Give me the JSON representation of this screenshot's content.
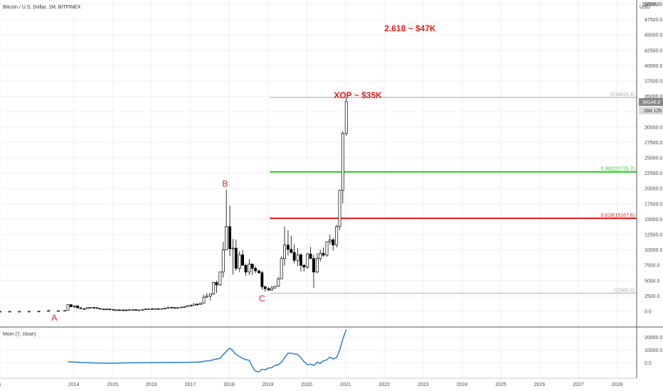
{
  "chart_data": [
    {
      "type": "candlestick",
      "title": "Bitcoin / U.S. Dollar, 1M, BITFINEX",
      "currency_label": "USD",
      "ylim": [
        -2000,
        52000
      ],
      "y_ticks": [
        0,
        2500,
        5000,
        7500,
        10000,
        12500,
        15000,
        17500,
        20000,
        22500,
        25000,
        27500,
        30000,
        32500,
        35000,
        37500,
        40000,
        42500,
        45000,
        47500,
        50000
      ],
      "y_tick_labels": [
        "0.0",
        "2500.0",
        "5000.0",
        "7500.0",
        "10000.0",
        "12500.0",
        "15000.0",
        "17500.0",
        "20000.0",
        "22500.0",
        "25000.0",
        "27500.0",
        "30000.0",
        "32500.0",
        "35000.0",
        "37500.0",
        "40000.0",
        "42500.0",
        "45000.0",
        "47500.0",
        "50000.0"
      ],
      "y_top_partial_label": "52500.0",
      "x_ticks": [
        "1",
        "2014",
        "2015",
        "2016",
        "2017",
        "2018",
        "2019",
        "2020",
        "2021",
        "2022",
        "2023",
        "2024",
        "2025",
        "2026",
        "2027",
        "2028"
      ],
      "xlim": [
        2012.0,
        2028.4
      ],
      "last_price_label": "34146.0",
      "countdown_label": "28d 12h",
      "grid": true,
      "candles": [
        {
          "t": 2012.0,
          "o": 5,
          "h": 7,
          "l": 4,
          "c": 6
        },
        {
          "t": 2012.25,
          "o": 5,
          "h": 7,
          "l": 4,
          "c": 5
        },
        {
          "t": 2012.5,
          "o": 6,
          "h": 12,
          "l": 6,
          "c": 10
        },
        {
          "t": 2012.75,
          "o": 11,
          "h": 13,
          "l": 10,
          "c": 13
        },
        {
          "t": 2013.0,
          "o": 13,
          "h": 30,
          "l": 13,
          "c": 30
        },
        {
          "t": 2013.25,
          "o": 100,
          "h": 260,
          "l": 60,
          "c": 120
        },
        {
          "t": 2013.5,
          "o": 95,
          "h": 120,
          "l": 70,
          "c": 105
        },
        {
          "t": 2013.67,
          "o": 130,
          "h": 160,
          "l": 110,
          "c": 150
        },
        {
          "t": 2013.75,
          "o": 200,
          "h": 1150,
          "l": 190,
          "c": 1100
        },
        {
          "t": 2013.83,
          "o": 1100,
          "h": 1160,
          "l": 750,
          "c": 750
        },
        {
          "t": 2013.92,
          "o": 750,
          "h": 1000,
          "l": 500,
          "c": 900
        },
        {
          "t": 2014.0,
          "o": 900,
          "h": 950,
          "l": 550,
          "c": 560
        },
        {
          "t": 2014.08,
          "o": 560,
          "h": 700,
          "l": 450,
          "c": 450
        },
        {
          "t": 2014.17,
          "o": 450,
          "h": 520,
          "l": 430,
          "c": 440
        },
        {
          "t": 2014.25,
          "o": 440,
          "h": 650,
          "l": 430,
          "c": 630
        },
        {
          "t": 2014.33,
          "o": 630,
          "h": 680,
          "l": 560,
          "c": 640
        },
        {
          "t": 2014.42,
          "o": 640,
          "h": 660,
          "l": 580,
          "c": 590
        },
        {
          "t": 2014.5,
          "o": 590,
          "h": 600,
          "l": 450,
          "c": 480
        },
        {
          "t": 2014.58,
          "o": 480,
          "h": 500,
          "l": 380,
          "c": 390
        },
        {
          "t": 2014.67,
          "o": 390,
          "h": 420,
          "l": 300,
          "c": 340
        },
        {
          "t": 2014.75,
          "o": 340,
          "h": 460,
          "l": 320,
          "c": 380
        },
        {
          "t": 2014.83,
          "o": 380,
          "h": 390,
          "l": 300,
          "c": 310
        },
        {
          "t": 2014.92,
          "o": 310,
          "h": 340,
          "l": 170,
          "c": 220
        },
        {
          "t": 2015.0,
          "o": 220,
          "h": 260,
          "l": 200,
          "c": 250
        },
        {
          "t": 2015.08,
          "o": 250,
          "h": 300,
          "l": 240,
          "c": 240
        },
        {
          "t": 2015.17,
          "o": 240,
          "h": 260,
          "l": 220,
          "c": 235
        },
        {
          "t": 2015.25,
          "o": 235,
          "h": 250,
          "l": 220,
          "c": 230
        },
        {
          "t": 2015.33,
          "o": 230,
          "h": 260,
          "l": 220,
          "c": 260
        },
        {
          "t": 2015.42,
          "o": 260,
          "h": 320,
          "l": 250,
          "c": 280
        },
        {
          "t": 2015.5,
          "o": 280,
          "h": 290,
          "l": 200,
          "c": 230
        },
        {
          "t": 2015.58,
          "o": 230,
          "h": 250,
          "l": 220,
          "c": 236
        },
        {
          "t": 2015.67,
          "o": 236,
          "h": 320,
          "l": 235,
          "c": 310
        },
        {
          "t": 2015.75,
          "o": 310,
          "h": 500,
          "l": 300,
          "c": 380
        },
        {
          "t": 2015.83,
          "o": 380,
          "h": 470,
          "l": 350,
          "c": 430
        },
        {
          "t": 2015.92,
          "o": 430,
          "h": 460,
          "l": 350,
          "c": 370
        },
        {
          "t": 2016.0,
          "o": 370,
          "h": 440,
          "l": 360,
          "c": 440
        },
        {
          "t": 2016.08,
          "o": 440,
          "h": 450,
          "l": 400,
          "c": 415
        },
        {
          "t": 2016.17,
          "o": 415,
          "h": 470,
          "l": 410,
          "c": 450
        },
        {
          "t": 2016.25,
          "o": 450,
          "h": 550,
          "l": 440,
          "c": 530
        },
        {
          "t": 2016.33,
          "o": 530,
          "h": 780,
          "l": 520,
          "c": 670
        },
        {
          "t": 2016.42,
          "o": 670,
          "h": 700,
          "l": 600,
          "c": 620
        },
        {
          "t": 2016.5,
          "o": 620,
          "h": 630,
          "l": 530,
          "c": 575
        },
        {
          "t": 2016.58,
          "o": 575,
          "h": 620,
          "l": 570,
          "c": 610
        },
        {
          "t": 2016.67,
          "o": 610,
          "h": 720,
          "l": 600,
          "c": 700
        },
        {
          "t": 2016.75,
          "o": 700,
          "h": 760,
          "l": 690,
          "c": 740
        },
        {
          "t": 2016.83,
          "o": 740,
          "h": 980,
          "l": 730,
          "c": 960
        },
        {
          "t": 2016.92,
          "o": 960,
          "h": 1150,
          "l": 750,
          "c": 970
        },
        {
          "t": 2017.0,
          "o": 970,
          "h": 1200,
          "l": 940,
          "c": 1190
        },
        {
          "t": 2017.08,
          "o": 1190,
          "h": 1290,
          "l": 890,
          "c": 1080
        },
        {
          "t": 2017.17,
          "o": 1080,
          "h": 1450,
          "l": 1070,
          "c": 1350
        },
        {
          "t": 2017.25,
          "o": 1350,
          "h": 2700,
          "l": 1340,
          "c": 2300
        },
        {
          "t": 2017.33,
          "o": 2300,
          "h": 3000,
          "l": 2200,
          "c": 2500
        },
        {
          "t": 2017.42,
          "o": 2500,
          "h": 2900,
          "l": 1800,
          "c": 2870
        },
        {
          "t": 2017.5,
          "o": 2870,
          "h": 4800,
          "l": 2700,
          "c": 4700
        },
        {
          "t": 2017.58,
          "o": 4700,
          "h": 5000,
          "l": 3000,
          "c": 4300
        },
        {
          "t": 2017.67,
          "o": 4300,
          "h": 6400,
          "l": 4200,
          "c": 6400
        },
        {
          "t": 2017.75,
          "o": 6400,
          "h": 11300,
          "l": 5500,
          "c": 10000
        },
        {
          "t": 2017.83,
          "o": 10000,
          "h": 19800,
          "l": 10000,
          "c": 13800
        },
        {
          "t": 2017.92,
          "o": 13800,
          "h": 17200,
          "l": 9000,
          "c": 10200
        },
        {
          "t": 2018.0,
          "o": 10200,
          "h": 11800,
          "l": 6000,
          "c": 10300
        },
        {
          "t": 2018.08,
          "o": 10300,
          "h": 11700,
          "l": 6600,
          "c": 7000
        },
        {
          "t": 2018.17,
          "o": 7000,
          "h": 9800,
          "l": 6400,
          "c": 9200
        },
        {
          "t": 2018.25,
          "o": 9200,
          "h": 10000,
          "l": 7800,
          "c": 7500
        },
        {
          "t": 2018.33,
          "o": 7500,
          "h": 7800,
          "l": 5800,
          "c": 6400
        },
        {
          "t": 2018.42,
          "o": 6400,
          "h": 8500,
          "l": 5900,
          "c": 7700
        },
        {
          "t": 2018.5,
          "o": 7700,
          "h": 7800,
          "l": 5900,
          "c": 7000
        },
        {
          "t": 2018.58,
          "o": 7000,
          "h": 7400,
          "l": 6200,
          "c": 6600
        },
        {
          "t": 2018.67,
          "o": 6600,
          "h": 6800,
          "l": 6100,
          "c": 6300
        },
        {
          "t": 2018.75,
          "o": 6300,
          "h": 6600,
          "l": 3500,
          "c": 4000
        },
        {
          "t": 2018.83,
          "o": 4000,
          "h": 4200,
          "l": 3200,
          "c": 3700
        },
        {
          "t": 2018.92,
          "o": 3700,
          "h": 4000,
          "l": 3400,
          "c": 3450
        },
        {
          "t": 2019.0,
          "o": 3450,
          "h": 4200,
          "l": 3400,
          "c": 3800
        },
        {
          "t": 2019.08,
          "o": 3800,
          "h": 4100,
          "l": 3700,
          "c": 4100
        },
        {
          "t": 2019.17,
          "o": 4100,
          "h": 5600,
          "l": 4000,
          "c": 5300
        },
        {
          "t": 2019.25,
          "o": 5300,
          "h": 9000,
          "l": 5300,
          "c": 8600
        },
        {
          "t": 2019.33,
          "o": 8600,
          "h": 13800,
          "l": 7500,
          "c": 10800
        },
        {
          "t": 2019.42,
          "o": 10800,
          "h": 13200,
          "l": 9100,
          "c": 10100
        },
        {
          "t": 2019.5,
          "o": 10100,
          "h": 12300,
          "l": 9400,
          "c": 9600
        },
        {
          "t": 2019.58,
          "o": 9600,
          "h": 10900,
          "l": 7800,
          "c": 8300
        },
        {
          "t": 2019.67,
          "o": 8300,
          "h": 10300,
          "l": 7400,
          "c": 9200
        },
        {
          "t": 2019.75,
          "o": 9200,
          "h": 9500,
          "l": 6500,
          "c": 7500
        },
        {
          "t": 2019.83,
          "o": 7500,
          "h": 7700,
          "l": 6500,
          "c": 7200
        },
        {
          "t": 2019.92,
          "o": 7200,
          "h": 9500,
          "l": 6900,
          "c": 9350
        },
        {
          "t": 2020.0,
          "o": 9350,
          "h": 10500,
          "l": 8500,
          "c": 8600
        },
        {
          "t": 2020.08,
          "o": 8600,
          "h": 9200,
          "l": 3800,
          "c": 6400
        },
        {
          "t": 2020.17,
          "o": 6400,
          "h": 9500,
          "l": 6200,
          "c": 8600
        },
        {
          "t": 2020.25,
          "o": 8600,
          "h": 10000,
          "l": 8100,
          "c": 9450
        },
        {
          "t": 2020.33,
          "o": 9450,
          "h": 10400,
          "l": 8900,
          "c": 9150
        },
        {
          "t": 2020.42,
          "o": 9150,
          "h": 11400,
          "l": 8900,
          "c": 11350
        },
        {
          "t": 2020.5,
          "o": 11350,
          "h": 12500,
          "l": 10900,
          "c": 11650
        },
        {
          "t": 2020.58,
          "o": 11650,
          "h": 12000,
          "l": 9900,
          "c": 10800
        },
        {
          "t": 2020.67,
          "o": 10800,
          "h": 14100,
          "l": 10400,
          "c": 13800
        },
        {
          "t": 2020.75,
          "o": 13800,
          "h": 19800,
          "l": 13200,
          "c": 19700
        },
        {
          "t": 2020.83,
          "o": 19700,
          "h": 29300,
          "l": 17600,
          "c": 29000
        },
        {
          "t": 2020.92,
          "o": 29000,
          "h": 34800,
          "l": 28600,
          "c": 34146
        }
      ],
      "fibonacci": [
        {
          "level": 0,
          "price": 34814,
          "label": "0(34815.4)",
          "color": "#b0b0b0"
        },
        {
          "level": 0.382,
          "price": 22716,
          "label": "0.382(22715.7)",
          "color": "#22cc22"
        },
        {
          "level": 0.618,
          "price": 15168,
          "label": "0.618(15167.6)",
          "color": "#e0201b"
        },
        {
          "level": 1,
          "price": 2973,
          "label": "1(2980.0)",
          "color": "#b0b0b0"
        }
      ],
      "fib_x_start": 2018.95,
      "wave_labels": [
        {
          "text": "A",
          "t": 2013.4,
          "price": -1500
        },
        {
          "text": "B",
          "t": 2017.8,
          "price": 20300
        },
        {
          "text": "C",
          "t": 2018.75,
          "price": 1600
        }
      ],
      "annotations": [
        {
          "text": "XOP ~ $35K",
          "t": 2020.6,
          "price": 34700
        },
        {
          "text": "2.618  ~ $47K",
          "t": 2021.9,
          "price": 45600
        }
      ]
    },
    {
      "type": "line",
      "title": "Mom (7, close)",
      "ylim": [
        -12000,
        28000
      ],
      "y_ticks": [
        0,
        10000,
        20000
      ],
      "y_tick_labels": [
        "0.0",
        "10000.0",
        "20000.0"
      ],
      "series": [
        {
          "color": "#2a7fc9",
          "x": [
            2013.75,
            2013.83,
            2013.92,
            2014.0,
            2014.08,
            2014.17,
            2014.25,
            2014.33,
            2014.42,
            2014.5,
            2014.58,
            2014.67,
            2014.75,
            2014.83,
            2014.92,
            2015.0,
            2015.25,
            2015.5,
            2015.75,
            2016.0,
            2016.25,
            2016.5,
            2016.75,
            2017.0,
            2017.17,
            2017.25,
            2017.33,
            2017.42,
            2017.5,
            2017.58,
            2017.67,
            2017.75,
            2017.83,
            2017.92,
            2018.0,
            2018.08,
            2018.17,
            2018.25,
            2018.33,
            2018.42,
            2018.5,
            2018.58,
            2018.67,
            2018.75,
            2018.83,
            2018.92,
            2019.0,
            2019.08,
            2019.17,
            2019.25,
            2019.33,
            2019.42,
            2019.5,
            2019.58,
            2019.67,
            2019.75,
            2019.83,
            2019.92,
            2020.0,
            2020.08,
            2020.17,
            2020.25,
            2020.33,
            2020.42,
            2020.5,
            2020.58,
            2020.67,
            2020.75,
            2020.83,
            2020.92
          ],
          "y": [
            900,
            700,
            600,
            500,
            250,
            200,
            150,
            100,
            -50,
            -100,
            -150,
            -200,
            -250,
            -200,
            -300,
            -150,
            0,
            50,
            100,
            200,
            300,
            350,
            400,
            500,
            700,
            1200,
            1500,
            1800,
            2500,
            3000,
            3500,
            6500,
            9000,
            11500,
            9500,
            6500,
            5000,
            3500,
            2500,
            2000,
            -3000,
            -6500,
            -7000,
            -5000,
            -5500,
            -4000,
            -3800,
            -2000,
            -1500,
            500,
            4000,
            7500,
            7500,
            7000,
            6500,
            4000,
            1000,
            -1500,
            -1000,
            -2000,
            500,
            -400,
            1600,
            2400,
            4500,
            3000,
            4100,
            10000,
            18600,
            26000
          ]
        }
      ],
      "x_ticks": [
        "1",
        "2014",
        "2015",
        "2016",
        "2017",
        "2018",
        "2019",
        "2020",
        "2021",
        "2022",
        "2023",
        "2024",
        "2025",
        "2026",
        "2027",
        "2028"
      ]
    }
  ]
}
